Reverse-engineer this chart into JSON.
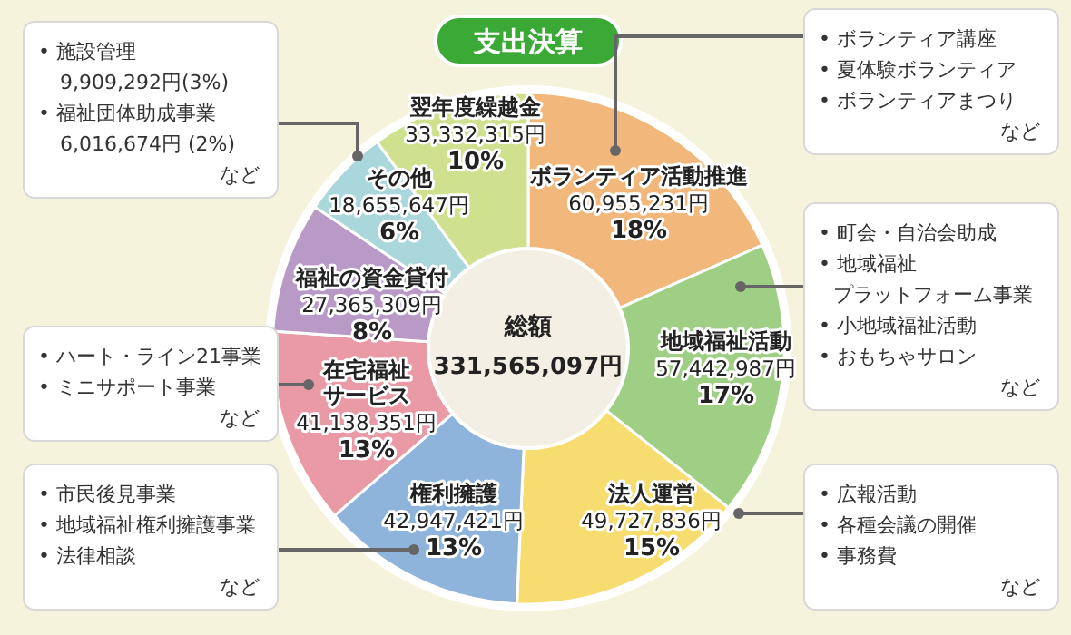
{
  "chart_data": {
    "type": "donut",
    "title": "支出決算",
    "categories": [
      "ボランティア活動推進",
      "地域福祉活動",
      "法人運営",
      "権利擁護",
      "在宅福祉サービス",
      "福祉の資金貸付",
      "その他",
      "翌年度繰越金"
    ],
    "values": [
      60955231,
      57442987,
      49727836,
      42947421,
      41138351,
      27365309,
      18655647,
      33332315
    ],
    "colors": [
      "#f2b77a",
      "#9fcf84",
      "#f7dc6f",
      "#8fb4dc",
      "#e99aa5",
      "#b99ac6",
      "#a9d7dc",
      "#cfe08e"
    ],
    "value_labels": [
      "60,955,231円\n18%",
      "57,442,987円\n17%",
      "49,727,836円\n15%",
      "42,947,421円\n13%",
      "41,138,351円\n13%",
      "27,365,309円\n8%",
      "18,655,647円\n6%",
      "33,332,315円\n10%"
    ],
    "annotations": [
      "総額",
      "331,565,097円",
      "• 施設管理",
      "9,909,292円(3%)",
      "• 福祉団体助成事業",
      "6,016,674円 (2%)",
      "など",
      "• ボランティア講座",
      "• 夏体験ボランティア",
      "• ボランティアまつり",
      "など",
      "• 町会・自治会助成",
      "• 地域福祉プラットフォーム事業",
      "• 小地域福祉活動",
      "• おもちゃサロン",
      "など",
      "• ハート・ライン21事業",
      "• ミニサポート事業",
      "など",
      "• 市民後見事業",
      "• 地域福祉権利擁護事業",
      "• 法律相談",
      "など",
      "• 広報活動",
      "• 各種会議の開催",
      "• 事務費",
      "など"
    ]
  }
}
